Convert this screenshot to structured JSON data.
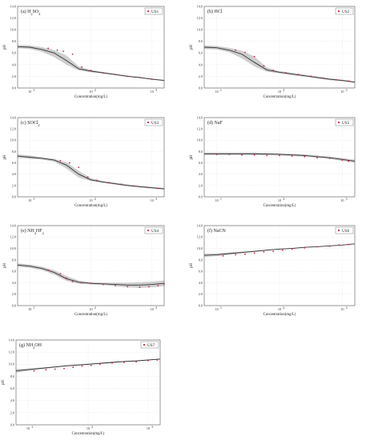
{
  "chart_data": [
    {
      "type": "line",
      "panel_label": "(a) H",
      "panel_formula": [
        {
          "t": "(a) H"
        },
        {
          "t": "2",
          "sub": true
        },
        {
          "t": "SO"
        },
        {
          "t": "4",
          "sub": true
        }
      ],
      "legend": "US1",
      "xlabel": "Concentration(mg/L)",
      "ylabel": "pH",
      "x_scale": "log",
      "xlim": [
        0.8,
        3.2
      ],
      "ylim": [
        0,
        14
      ],
      "y_ticks": [
        "0.0",
        "2.0",
        "4.0",
        "6.0",
        "8.0",
        "10.0",
        "12.0",
        "14.0"
      ],
      "x_ticks": [
        {
          "exp": 1,
          "label": "10"
        },
        {
          "exp": 2,
          "label": "10"
        },
        {
          "exp": 3,
          "label": "10"
        }
      ],
      "fit": {
        "logx": [
          0.8,
          1.0,
          1.2,
          1.4,
          1.6,
          1.8,
          2.0,
          2.2,
          2.4,
          2.6,
          2.8,
          3.0,
          3.2
        ],
        "y": [
          7.1,
          7.0,
          6.6,
          6.0,
          4.7,
          3.3,
          2.9,
          2.6,
          2.3,
          2.0,
          1.8,
          1.5,
          1.3
        ]
      },
      "band": {
        "upper": [
          7.4,
          7.3,
          7.0,
          6.5,
          5.6,
          3.7,
          3.1,
          2.75,
          2.45,
          2.15,
          1.9,
          1.65,
          1.4
        ],
        "lower": [
          6.8,
          6.7,
          6.2,
          5.3,
          4.0,
          3.0,
          2.7,
          2.45,
          2.2,
          1.9,
          1.7,
          1.45,
          1.2
        ]
      },
      "observed": {
        "logx": [
          1.3,
          1.45,
          1.55,
          1.7,
          1.85,
          2.0,
          2.2,
          2.4,
          2.6,
          2.8,
          3.0
        ],
        "y": [
          6.8,
          6.5,
          6.3,
          5.8,
          3.6,
          3.0,
          2.6,
          2.3,
          2.0,
          1.8,
          1.5
        ]
      }
    },
    {
      "type": "line",
      "panel_formula": [
        {
          "t": "(b) HCl"
        }
      ],
      "legend": "US2",
      "xlabel": "Concentration(mg/L)",
      "ylabel": "pH",
      "x_scale": "log",
      "xlim": [
        0.8,
        3.2
      ],
      "ylim": [
        0,
        14
      ],
      "y_ticks": [
        "0.0",
        "2.0",
        "4.0",
        "6.0",
        "8.0",
        "10.0",
        "12.0",
        "14.0"
      ],
      "x_ticks": [
        {
          "exp": 1,
          "label": "10"
        },
        {
          "exp": 2,
          "label": "10"
        },
        {
          "exp": 3,
          "label": "10"
        }
      ],
      "fit": {
        "logx": [
          0.8,
          1.0,
          1.2,
          1.4,
          1.6,
          1.8,
          2.0,
          2.2,
          2.4,
          2.6,
          2.8,
          3.0,
          3.2
        ],
        "y": [
          7.0,
          6.9,
          6.5,
          5.8,
          4.4,
          3.1,
          2.7,
          2.4,
          2.1,
          1.8,
          1.5,
          1.3,
          1.0
        ]
      },
      "band": {
        "upper": [
          7.3,
          7.2,
          6.9,
          6.4,
          5.4,
          3.5,
          2.9,
          2.6,
          2.3,
          2.0,
          1.7,
          1.45,
          1.15
        ],
        "lower": [
          6.7,
          6.6,
          6.1,
          5.1,
          3.7,
          2.8,
          2.5,
          2.2,
          1.95,
          1.65,
          1.35,
          1.15,
          0.9
        ]
      },
      "observed": {
        "logx": [
          1.3,
          1.45,
          1.6,
          1.75,
          1.9,
          2.1,
          2.3,
          2.5,
          2.7,
          2.9,
          3.1
        ],
        "y": [
          6.5,
          6.1,
          5.4,
          3.8,
          3.0,
          2.6,
          2.3,
          2.0,
          1.7,
          1.4,
          1.2
        ]
      }
    },
    {
      "type": "line",
      "panel_formula": [
        {
          "t": "(c) SOCl"
        },
        {
          "t": "2",
          "sub": true
        }
      ],
      "legend": "US3",
      "xlabel": "Concentration(mg/L)",
      "ylabel": "pH",
      "x_scale": "log",
      "xlim": [
        0.8,
        3.2
      ],
      "ylim": [
        0,
        14
      ],
      "y_ticks": [
        "0.0",
        "2.0",
        "4.0",
        "6.0",
        "8.0",
        "10.0",
        "12.0",
        "14.0"
      ],
      "x_ticks": [
        {
          "exp": 1,
          "label": "10"
        },
        {
          "exp": 2,
          "label": "10"
        },
        {
          "exp": 3,
          "label": "10"
        }
      ],
      "fit": {
        "logx": [
          0.8,
          1.0,
          1.2,
          1.4,
          1.6,
          1.8,
          2.0,
          2.2,
          2.4,
          2.6,
          2.8,
          3.0,
          3.2
        ],
        "y": [
          7.2,
          7.0,
          6.8,
          6.5,
          5.6,
          4.0,
          3.0,
          2.6,
          2.3,
          2.0,
          1.8,
          1.6,
          1.4
        ]
      },
      "band": {
        "upper": [
          7.5,
          7.3,
          7.0,
          6.7,
          6.1,
          4.6,
          3.3,
          2.8,
          2.5,
          2.2,
          1.95,
          1.75,
          1.55
        ],
        "lower": [
          6.9,
          6.7,
          6.6,
          6.2,
          5.0,
          3.4,
          2.8,
          2.45,
          2.15,
          1.85,
          1.65,
          1.45,
          1.25
        ]
      },
      "observed": {
        "logx": [
          1.5,
          1.65,
          1.8,
          1.95,
          2.1,
          2.3,
          2.5,
          2.7,
          2.9,
          3.1
        ],
        "y": [
          6.4,
          6.0,
          5.2,
          3.5,
          2.9,
          2.5,
          2.2,
          1.9,
          1.7,
          1.5
        ]
      }
    },
    {
      "type": "line",
      "panel_formula": [
        {
          "t": "(d) NaF"
        }
      ],
      "legend": "US5",
      "xlabel": "Concentration(mg/L)",
      "ylabel": "pH",
      "x_scale": "log",
      "xlim": [
        0.8,
        3.2
      ],
      "ylim": [
        0,
        14
      ],
      "y_ticks": [
        "0.0",
        "2.0",
        "4.0",
        "6.0",
        "8.0",
        "10.0",
        "12.0",
        "14.0"
      ],
      "x_ticks": [
        {
          "exp": 1,
          "label": "10"
        },
        {
          "exp": 2,
          "label": "10"
        },
        {
          "exp": 3,
          "label": "10"
        }
      ],
      "fit": {
        "logx": [
          0.8,
          1.0,
          1.2,
          1.4,
          1.6,
          1.8,
          2.0,
          2.2,
          2.4,
          2.6,
          2.8,
          3.0,
          3.2
        ],
        "y": [
          7.6,
          7.6,
          7.6,
          7.6,
          7.6,
          7.55,
          7.5,
          7.4,
          7.3,
          7.1,
          6.9,
          6.6,
          6.3
        ]
      },
      "band": {
        "upper": [
          7.8,
          7.8,
          7.8,
          7.8,
          7.8,
          7.75,
          7.7,
          7.6,
          7.5,
          7.3,
          7.1,
          6.85,
          6.55
        ],
        "lower": [
          7.4,
          7.4,
          7.4,
          7.4,
          7.4,
          7.35,
          7.3,
          7.2,
          7.1,
          6.9,
          6.7,
          6.35,
          6.05
        ]
      },
      "observed": {
        "logx": [
          1.0,
          1.2,
          1.4,
          1.6,
          1.8,
          2.0,
          2.2,
          2.4,
          2.6,
          2.8,
          3.0,
          3.1
        ],
        "y": [
          7.5,
          7.5,
          7.4,
          7.4,
          7.3,
          7.3,
          7.2,
          7.1,
          6.9,
          6.8,
          6.5,
          6.3
        ]
      }
    },
    {
      "type": "line",
      "panel_formula": [
        {
          "t": "(e) NH"
        },
        {
          "t": "4",
          "sub": true
        },
        {
          "t": "HF"
        },
        {
          "t": "2",
          "sub": true
        }
      ],
      "legend": "US4",
      "xlabel": "Concentration(mg/L)",
      "ylabel": "pH",
      "x_scale": "log",
      "xlim": [
        0.8,
        3.2
      ],
      "ylim": [
        0,
        14
      ],
      "y_ticks": [
        "0.0",
        "2.0",
        "4.0",
        "6.0",
        "8.0",
        "10.0",
        "12.0",
        "14.0"
      ],
      "x_ticks": [
        {
          "exp": 1,
          "label": "10"
        },
        {
          "exp": 2,
          "label": "10"
        },
        {
          "exp": 3,
          "label": "10"
        }
      ],
      "fit": {
        "logx": [
          0.8,
          1.0,
          1.2,
          1.4,
          1.6,
          1.8,
          2.0,
          2.2,
          2.4,
          2.6,
          2.8,
          3.0,
          3.2
        ],
        "y": [
          7.1,
          6.9,
          6.5,
          5.8,
          4.7,
          4.1,
          3.9,
          3.8,
          3.7,
          3.6,
          3.6,
          3.7,
          3.9
        ]
      },
      "band": {
        "upper": [
          7.4,
          7.2,
          6.8,
          6.2,
          5.2,
          4.4,
          4.1,
          4.0,
          4.0,
          4.0,
          4.1,
          4.2,
          4.4
        ],
        "lower": [
          6.8,
          6.6,
          6.2,
          5.4,
          4.3,
          3.8,
          3.7,
          3.6,
          3.4,
          3.2,
          3.1,
          3.2,
          3.4
        ]
      },
      "observed": {
        "logx": [
          1.3,
          1.5,
          1.6,
          1.7,
          1.85,
          2.0,
          2.2,
          2.4,
          2.6,
          2.8,
          2.95,
          3.1,
          3.2
        ],
        "y": [
          6.2,
          5.6,
          4.8,
          4.2,
          4.0,
          3.9,
          3.7,
          3.5,
          3.3,
          3.2,
          3.3,
          3.5,
          3.8
        ]
      }
    },
    {
      "type": "line",
      "panel_formula": [
        {
          "t": "(f) NaCN"
        }
      ],
      "legend": "US6",
      "xlabel": "Concentration(mg/L)",
      "ylabel": "pH",
      "x_scale": "log",
      "xlim": [
        0.8,
        3.2
      ],
      "ylim": [
        0,
        14
      ],
      "y_ticks": [
        "0.0",
        "2.0",
        "4.0",
        "6.0",
        "8.0",
        "10.0",
        "12.0",
        "14.0"
      ],
      "x_ticks": [
        {
          "exp": 1,
          "label": "10"
        },
        {
          "exp": 2,
          "label": "10"
        },
        {
          "exp": 3,
          "label": "10"
        }
      ],
      "fit": {
        "logx": [
          0.8,
          1.0,
          1.2,
          1.4,
          1.6,
          1.8,
          2.0,
          2.2,
          2.4,
          2.6,
          2.8,
          3.0,
          3.2
        ],
        "y": [
          8.8,
          8.9,
          9.1,
          9.3,
          9.5,
          9.7,
          9.9,
          10.0,
          10.2,
          10.3,
          10.45,
          10.6,
          10.8
        ]
      },
      "band": {
        "upper": [
          9.1,
          9.15,
          9.3,
          9.45,
          9.6,
          9.8,
          9.95,
          10.1,
          10.25,
          10.35,
          10.5,
          10.65,
          10.85
        ],
        "lower": [
          8.5,
          8.65,
          8.9,
          9.15,
          9.4,
          9.6,
          9.85,
          9.95,
          10.15,
          10.25,
          10.4,
          10.55,
          10.75
        ]
      },
      "observed": {
        "logx": [
          1.1,
          1.3,
          1.45,
          1.6,
          1.75,
          1.9,
          2.05,
          2.2,
          2.4,
          2.6,
          2.8,
          2.95,
          3.1
        ],
        "y": [
          8.7,
          8.9,
          9.0,
          9.2,
          9.4,
          9.5,
          9.7,
          9.9,
          10.1,
          10.3,
          10.4,
          10.6,
          10.7
        ]
      }
    },
    {
      "type": "line",
      "panel_formula": [
        {
          "t": "(g) NH"
        },
        {
          "t": "4",
          "sub": true
        },
        {
          "t": "OH"
        }
      ],
      "legend": "US7",
      "xlabel": "Concentration(mg/L)",
      "ylabel": "pH",
      "x_scale": "log",
      "xlim": [
        0.8,
        3.2
      ],
      "ylim": [
        0,
        14
      ],
      "y_ticks": [
        "0.0",
        "2.0",
        "4.0",
        "6.0",
        "8.0",
        "10.0",
        "12.0",
        "14.0"
      ],
      "x_ticks": [
        {
          "exp": 1,
          "label": "10"
        },
        {
          "exp": 2,
          "label": "10"
        },
        {
          "exp": 3,
          "label": "10"
        }
      ],
      "fit": {
        "logx": [
          0.8,
          1.0,
          1.2,
          1.4,
          1.6,
          1.8,
          2.0,
          2.2,
          2.4,
          2.6,
          2.8,
          3.0,
          3.2
        ],
        "y": [
          8.9,
          9.1,
          9.3,
          9.5,
          9.7,
          9.85,
          10.0,
          10.15,
          10.3,
          10.45,
          10.55,
          10.7,
          10.85
        ]
      },
      "band": {
        "upper": [
          9.2,
          9.3,
          9.45,
          9.6,
          9.8,
          9.95,
          10.1,
          10.25,
          10.4,
          10.5,
          10.6,
          10.75,
          10.9
        ],
        "lower": [
          8.6,
          8.9,
          9.15,
          9.4,
          9.6,
          9.75,
          9.9,
          10.05,
          10.2,
          10.4,
          10.5,
          10.65,
          10.8
        ]
      },
      "observed": {
        "logx": [
          1.1,
          1.3,
          1.45,
          1.6,
          1.75,
          1.9,
          2.05,
          2.2,
          2.4,
          2.6,
          2.8,
          3.0,
          3.15
        ],
        "y": [
          8.9,
          9.1,
          9.2,
          9.3,
          9.5,
          9.7,
          9.8,
          10.0,
          10.2,
          10.3,
          10.4,
          10.6,
          10.7
        ]
      }
    }
  ]
}
